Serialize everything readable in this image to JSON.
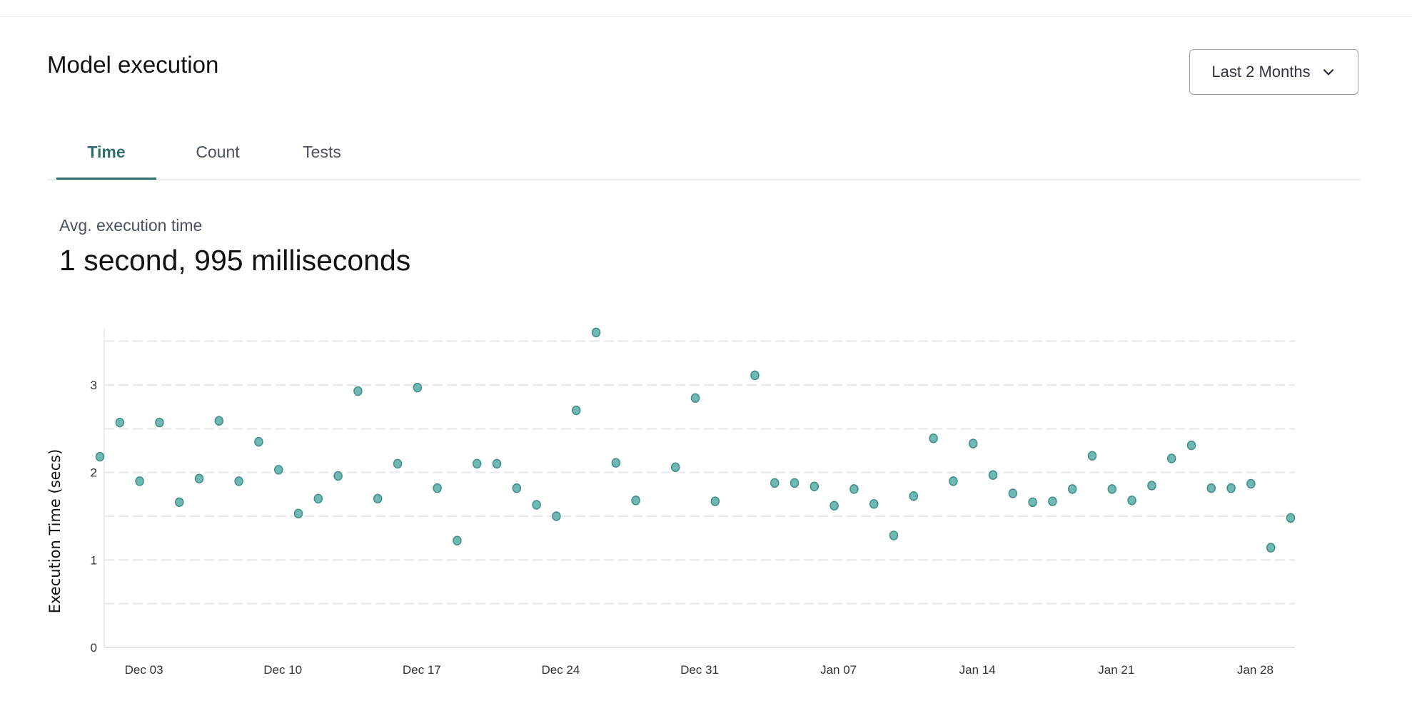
{
  "header": {
    "title": "Model execution"
  },
  "range_dropdown": {
    "selected": "Last 2 Months",
    "icon": "chevron-down-icon"
  },
  "tabs": [
    {
      "label": "Time",
      "active": true
    },
    {
      "label": "Count",
      "active": false
    },
    {
      "label": "Tests",
      "active": false
    }
  ],
  "metric": {
    "label": "Avg. execution time",
    "value": "1 second, 995 milliseconds"
  },
  "colors": {
    "accent": "#2f6f6c",
    "point_fill": "#6fb8b3",
    "point_stroke": "#3f8f8a"
  },
  "chart_data": {
    "type": "scatter",
    "title": "",
    "xlabel": "",
    "ylabel": "Execution Time (secs)",
    "ylim": [
      0,
      3.6
    ],
    "yticks": [
      "0",
      "1",
      "2",
      "3"
    ],
    "grid": "horizontal dashed every 0.5",
    "xticks": [
      "Dec 03",
      "Dec 10",
      "Dec 17",
      "Dec 24",
      "Dec 31",
      "Jan 07",
      "Jan 14",
      "Jan 21",
      "Jan 28"
    ],
    "points": [
      [
        "Dec 01",
        2.18
      ],
      [
        "Dec 02",
        2.57
      ],
      [
        "Dec 03",
        1.9
      ],
      [
        "Dec 04",
        2.57
      ],
      [
        "Dec 05",
        1.66
      ],
      [
        "Dec 06",
        1.93
      ],
      [
        "Dec 07",
        2.59
      ],
      [
        "Dec 08",
        1.9
      ],
      [
        "Dec 09",
        2.35
      ],
      [
        "Dec 10",
        2.03
      ],
      [
        "Dec 11",
        1.53
      ],
      [
        "Dec 12",
        1.7
      ],
      [
        "Dec 13",
        1.96
      ],
      [
        "Dec 14",
        2.93
      ],
      [
        "Dec 15",
        1.7
      ],
      [
        "Dec 16",
        2.1
      ],
      [
        "Dec 17",
        2.97
      ],
      [
        "Dec 18",
        1.82
      ],
      [
        "Dec 19",
        1.22
      ],
      [
        "Dec 20",
        2.1
      ],
      [
        "Dec 21",
        2.1
      ],
      [
        "Dec 22",
        1.82
      ],
      [
        "Dec 23",
        1.63
      ],
      [
        "Dec 24",
        1.5
      ],
      [
        "Dec 25",
        2.71
      ],
      [
        "Dec 26",
        3.6
      ],
      [
        "Dec 27",
        2.11
      ],
      [
        "Dec 28",
        1.68
      ],
      [
        "Dec 30",
        2.06
      ],
      [
        "Dec 31",
        2.85
      ],
      [
        "Jan 01",
        1.67
      ],
      [
        "Jan 03",
        3.11
      ],
      [
        "Jan 04",
        1.88
      ],
      [
        "Jan 05",
        1.88
      ],
      [
        "Jan 06",
        1.84
      ],
      [
        "Jan 07",
        1.62
      ],
      [
        "Jan 08",
        1.81
      ],
      [
        "Jan 09",
        1.64
      ],
      [
        "Jan 10",
        1.28
      ],
      [
        "Jan 11",
        1.73
      ],
      [
        "Jan 12",
        2.39
      ],
      [
        "Jan 13",
        1.9
      ],
      [
        "Jan 14",
        2.33
      ],
      [
        "Jan 15",
        1.97
      ],
      [
        "Jan 16",
        1.76
      ],
      [
        "Jan 17",
        1.66
      ],
      [
        "Jan 18",
        1.67
      ],
      [
        "Jan 19",
        1.81
      ],
      [
        "Jan 20",
        2.19
      ],
      [
        "Jan 21",
        1.81
      ],
      [
        "Jan 22",
        1.68
      ],
      [
        "Jan 23",
        1.85
      ],
      [
        "Jan 24",
        2.16
      ],
      [
        "Jan 25",
        2.31
      ],
      [
        "Jan 26",
        1.82
      ],
      [
        "Jan 27",
        1.82
      ],
      [
        "Jan 28",
        1.87
      ],
      [
        "Jan 29",
        1.14
      ],
      [
        "Jan 30",
        1.48
      ]
    ]
  }
}
